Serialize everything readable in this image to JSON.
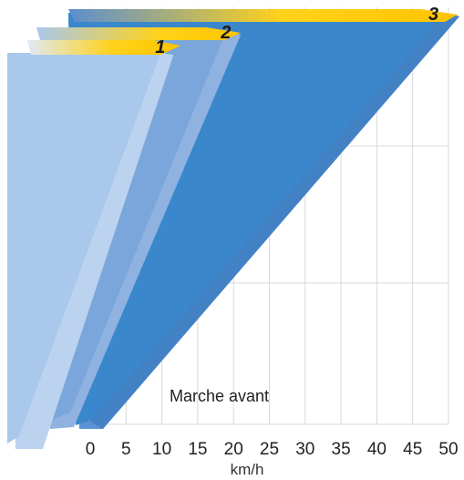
{
  "chart_data": {
    "type": "area",
    "title": "",
    "xlabel": "km/h",
    "ylabel": "",
    "xlim": [
      0,
      50
    ],
    "x_ticks": [
      "0",
      "5",
      "10",
      "15",
      "20",
      "25",
      "30",
      "35",
      "40",
      "45",
      "50"
    ],
    "grid": true,
    "annotation": "Marche avant",
    "series": [
      {
        "name": "1",
        "max_speed_kmh": 5,
        "color": "#a9c8ec"
      },
      {
        "name": "2",
        "max_speed_kmh": 20,
        "color": "#7aa6dc"
      },
      {
        "name": "3",
        "max_speed_kmh": 50,
        "color": "#3a87cc"
      }
    ],
    "colors": {
      "gear_label": "#ffd21a",
      "grid": "#d9d9d9"
    }
  }
}
